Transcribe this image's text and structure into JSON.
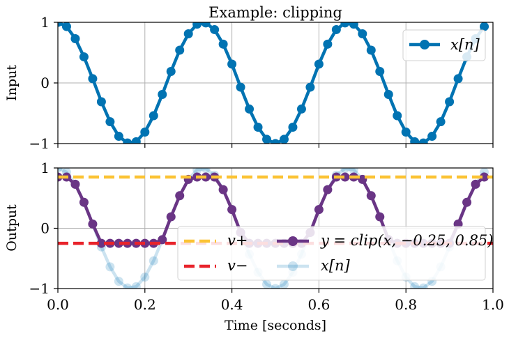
{
  "chart_data": [
    {
      "type": "line",
      "title": "Example: clipping",
      "ylabel": "Input",
      "xlim": [
        0.0,
        1.0
      ],
      "ylim": [
        -1,
        1
      ],
      "yticks": [
        "1",
        "0",
        "−1"
      ],
      "grid": true,
      "legend_position": "upper-right",
      "series": [
        {
          "name": "x[n]",
          "color": "#0173b2",
          "marker": "circle",
          "x": [
            0.0,
            0.02,
            0.04,
            0.06,
            0.08,
            0.1,
            0.12,
            0.14,
            0.16,
            0.18,
            0.2,
            0.22,
            0.24,
            0.26,
            0.28,
            0.3,
            0.32,
            0.34,
            0.36,
            0.38,
            0.4,
            0.42,
            0.44,
            0.46,
            0.48,
            0.5,
            0.52,
            0.54,
            0.56,
            0.58,
            0.6,
            0.62,
            0.64,
            0.66,
            0.68,
            0.7,
            0.72,
            0.74,
            0.76,
            0.78,
            0.8,
            0.82,
            0.84,
            0.86,
            0.88,
            0.9,
            0.92,
            0.94,
            0.96,
            0.98
          ],
          "values": [
            1.0,
            0.93,
            0.73,
            0.43,
            0.07,
            -0.31,
            -0.64,
            -0.88,
            -0.99,
            -0.97,
            -0.81,
            -0.54,
            -0.19,
            0.19,
            0.54,
            0.81,
            0.97,
            0.99,
            0.88,
            0.64,
            0.31,
            -0.07,
            -0.43,
            -0.73,
            -0.93,
            -1.0,
            -0.93,
            -0.73,
            -0.43,
            -0.07,
            0.31,
            0.64,
            0.88,
            0.99,
            0.97,
            0.81,
            0.54,
            0.19,
            -0.19,
            -0.54,
            -0.81,
            -0.97,
            -0.99,
            -0.88,
            -0.64,
            -0.31,
            0.07,
            0.43,
            0.73,
            0.93
          ]
        }
      ]
    },
    {
      "type": "line",
      "ylabel": "Output",
      "xlabel": "Time [seconds]",
      "xlim": [
        0.0,
        1.0
      ],
      "ylim": [
        -1,
        1
      ],
      "xticks": [
        "0.0",
        "0.2",
        "0.4",
        "0.6",
        "0.8",
        "1.0"
      ],
      "yticks": [
        "1",
        "0",
        "−1"
      ],
      "grid": true,
      "legend_position": "lower-right",
      "legend_columns": 2,
      "hlines": [
        {
          "name": "v+",
          "value": 0.85,
          "color": "#fbc334",
          "style": "dashed"
        },
        {
          "name": "v−",
          "value": -0.25,
          "color": "#e8232b",
          "style": "dashed"
        }
      ],
      "series": [
        {
          "name": "y = clip(x, −0.25, 0.85)",
          "color": "#6a3585",
          "marker": "circle",
          "x": [
            0.0,
            0.02,
            0.04,
            0.06,
            0.08,
            0.1,
            0.12,
            0.14,
            0.16,
            0.18,
            0.2,
            0.22,
            0.24,
            0.26,
            0.28,
            0.3,
            0.32,
            0.34,
            0.36,
            0.38,
            0.4,
            0.42,
            0.44,
            0.46,
            0.48,
            0.5,
            0.52,
            0.54,
            0.56,
            0.58,
            0.6,
            0.62,
            0.64,
            0.66,
            0.68,
            0.7,
            0.72,
            0.74,
            0.76,
            0.78,
            0.8,
            0.82,
            0.84,
            0.86,
            0.88,
            0.9,
            0.92,
            0.94,
            0.96,
            0.98
          ],
          "values": [
            0.85,
            0.85,
            0.73,
            0.43,
            0.07,
            -0.25,
            -0.25,
            -0.25,
            -0.25,
            -0.25,
            -0.25,
            -0.25,
            -0.19,
            0.19,
            0.54,
            0.81,
            0.85,
            0.85,
            0.85,
            0.64,
            0.31,
            -0.07,
            -0.25,
            -0.25,
            -0.25,
            -0.25,
            -0.25,
            -0.25,
            -0.25,
            -0.07,
            0.31,
            0.64,
            0.85,
            0.85,
            0.85,
            0.81,
            0.54,
            0.19,
            -0.19,
            -0.25,
            -0.25,
            -0.25,
            -0.25,
            -0.25,
            -0.25,
            -0.25,
            0.07,
            0.43,
            0.73,
            0.85
          ]
        },
        {
          "name": "x[n]",
          "color": "#0173b2",
          "opacity": 0.2,
          "marker": "circle",
          "x": [
            0.0,
            0.02,
            0.04,
            0.06,
            0.08,
            0.1,
            0.12,
            0.14,
            0.16,
            0.18,
            0.2,
            0.22,
            0.24,
            0.26,
            0.28,
            0.3,
            0.32,
            0.34,
            0.36,
            0.38,
            0.4,
            0.42,
            0.44,
            0.46,
            0.48,
            0.5,
            0.52,
            0.54,
            0.56,
            0.58,
            0.6,
            0.62,
            0.64,
            0.66,
            0.68,
            0.7,
            0.72,
            0.74,
            0.76,
            0.78,
            0.8,
            0.82,
            0.84,
            0.86,
            0.88,
            0.9,
            0.92,
            0.94,
            0.96,
            0.98
          ],
          "values": [
            1.0,
            0.93,
            0.73,
            0.43,
            0.07,
            -0.31,
            -0.64,
            -0.88,
            -0.99,
            -0.97,
            -0.81,
            -0.54,
            -0.19,
            0.19,
            0.54,
            0.81,
            0.97,
            0.99,
            0.88,
            0.64,
            0.31,
            -0.07,
            -0.43,
            -0.73,
            -0.93,
            -1.0,
            -0.93,
            -0.73,
            -0.43,
            -0.07,
            0.31,
            0.64,
            0.88,
            0.99,
            0.97,
            0.81,
            0.54,
            0.19,
            -0.19,
            -0.54,
            -0.81,
            -0.97,
            -0.99,
            -0.88,
            -0.64,
            -0.31,
            0.07,
            0.43,
            0.73,
            0.93
          ]
        }
      ]
    }
  ]
}
